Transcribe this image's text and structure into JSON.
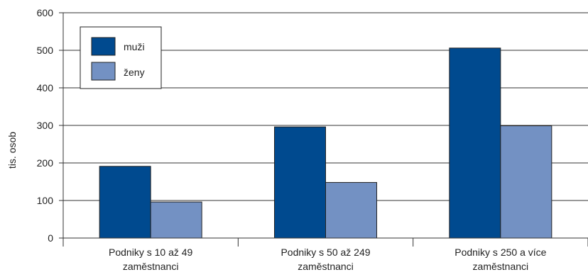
{
  "chart_data": {
    "type": "bar",
    "ylabel": "tis. osob",
    "ylim": [
      0,
      600
    ],
    "yticks": [
      0,
      100,
      200,
      300,
      400,
      500,
      600
    ],
    "grid": true,
    "legend_position": "top-left",
    "categories": [
      [
        "Podniky s 10 až 49",
        "zaměstnanci"
      ],
      [
        "Podniky s 50 až 249",
        "zaměstnanci"
      ],
      [
        "Podniky s 250 a více",
        "zaměstnanci"
      ]
    ],
    "series": [
      {
        "name": "muži",
        "color": "#004a8f",
        "values": [
          191,
          296,
          506
        ]
      },
      {
        "name": "ženy",
        "color": "#7391c3",
        "values": [
          96,
          148,
          299
        ]
      }
    ]
  }
}
